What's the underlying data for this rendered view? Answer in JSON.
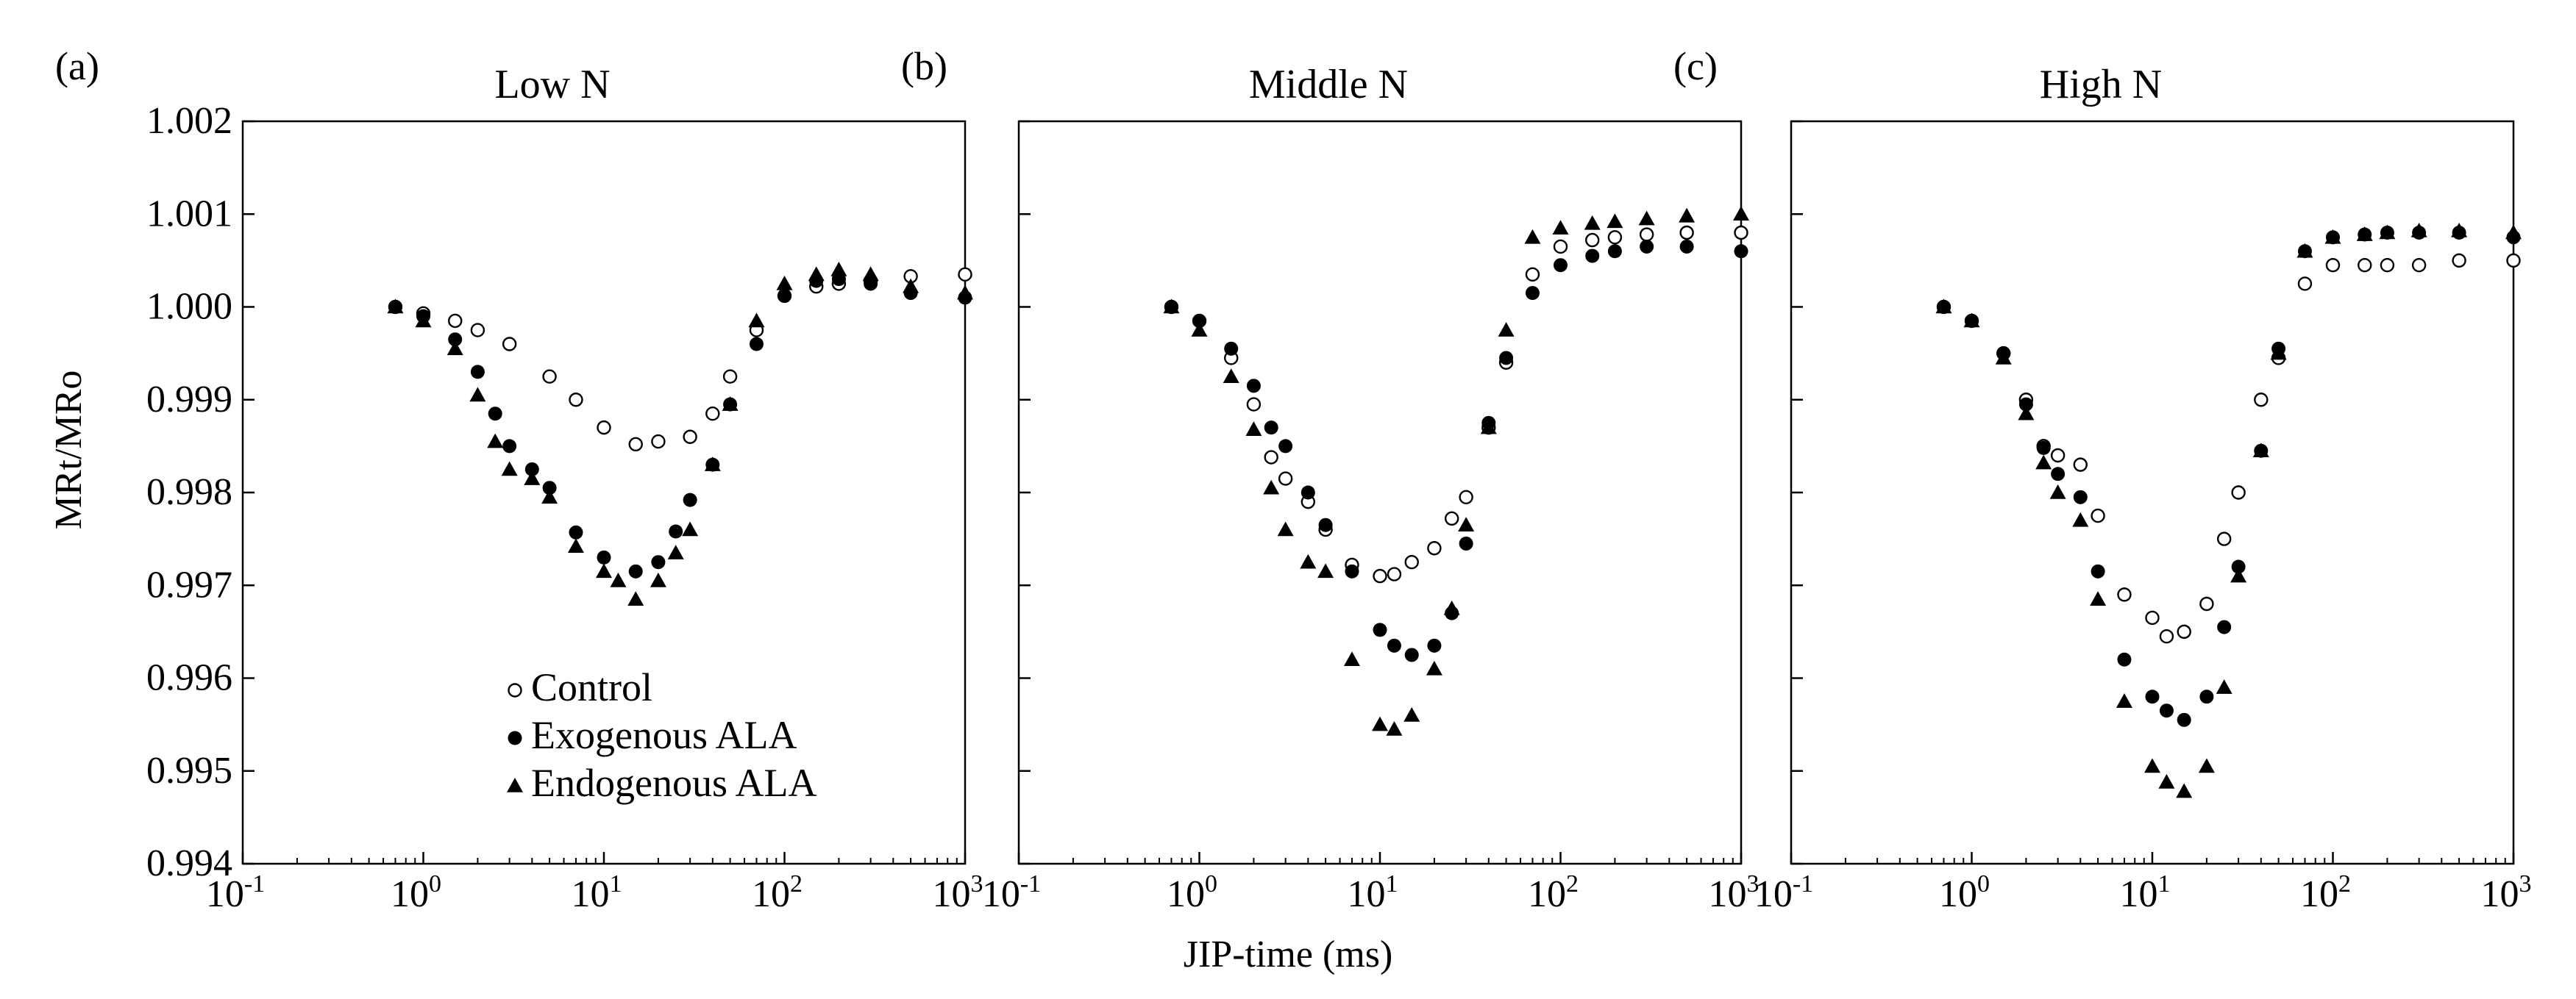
{
  "chart_data": {
    "type": "scatter",
    "x_scale": "log",
    "xlabel": "JIP-time (ms)",
    "ylabel": "MRt/MRo",
    "xlim": [
      0.1,
      1000
    ],
    "ylim": [
      0.994,
      1.002
    ],
    "x_tick_labels": [
      {
        "base": "10",
        "exp": "-1"
      },
      {
        "base": "10",
        "exp": "0"
      },
      {
        "base": "10",
        "exp": "1"
      },
      {
        "base": "10",
        "exp": "2"
      },
      {
        "base": "10",
        "exp": "3"
      }
    ],
    "y_ticks": [
      0.994,
      0.995,
      0.996,
      0.997,
      0.998,
      0.999,
      1.0,
      1.001,
      1.002
    ],
    "y_tick_labels": [
      "0.994",
      "0.995",
      "0.996",
      "0.997",
      "0.998",
      "0.999",
      "1.000",
      "1.001",
      "1.002"
    ],
    "legend": {
      "placement": "bottom-center of panel (a)",
      "entries": [
        {
          "label": "Control",
          "marker": "open-circle"
        },
        {
          "label": "Exogenous ALA",
          "marker": "filled-circle"
        },
        {
          "label": "Endogenous ALA",
          "marker": "filled-triangle"
        }
      ]
    },
    "panels": [
      {
        "tag": "(a)",
        "title": "Low N",
        "series": [
          {
            "name": "Control",
            "points": [
              [
                0.7,
                1.0
              ],
              [
                1.0,
                0.99993
              ],
              [
                1.5,
                0.99985
              ],
              [
                2.0,
                0.99975
              ],
              [
                3.0,
                0.9996
              ],
              [
                5.0,
                0.99925
              ],
              [
                7.0,
                0.999
              ],
              [
                10.0,
                0.9987
              ],
              [
                15.0,
                0.99852
              ],
              [
                20.0,
                0.99855
              ],
              [
                30.0,
                0.9986
              ],
              [
                40.0,
                0.99885
              ],
              [
                50.0,
                0.99925
              ],
              [
                70.0,
                0.99975
              ],
              [
                100.0,
                1.00012
              ],
              [
                150.0,
                1.00022
              ],
              [
                200.0,
                1.00025
              ],
              [
                300.0,
                1.00028
              ],
              [
                500.0,
                1.00033
              ],
              [
                1000.0,
                1.00035
              ]
            ]
          },
          {
            "name": "Exogenous ALA",
            "points": [
              [
                0.7,
                1.0
              ],
              [
                1.0,
                0.9999
              ],
              [
                1.5,
                0.99965
              ],
              [
                2.0,
                0.9993
              ],
              [
                2.5,
                0.99885
              ],
              [
                3.0,
                0.9985
              ],
              [
                4.0,
                0.99825
              ],
              [
                5.0,
                0.99805
              ],
              [
                7.0,
                0.99757
              ],
              [
                10.0,
                0.9973
              ],
              [
                15.0,
                0.99715
              ],
              [
                20.0,
                0.99725
              ],
              [
                25.0,
                0.99758
              ],
              [
                30.0,
                0.99792
              ],
              [
                40.0,
                0.9983
              ],
              [
                50.0,
                0.99895
              ],
              [
                70.0,
                0.9996
              ],
              [
                100.0,
                1.00012
              ],
              [
                150.0,
                1.00028
              ],
              [
                200.0,
                1.0003
              ],
              [
                300.0,
                1.00025
              ],
              [
                500.0,
                1.00015
              ],
              [
                1000.0,
                1.0001
              ]
            ]
          },
          {
            "name": "Endogenous ALA",
            "points": [
              [
                0.7,
                1.0
              ],
              [
                1.0,
                0.99985
              ],
              [
                1.5,
                0.99955
              ],
              [
                2.0,
                0.99905
              ],
              [
                2.5,
                0.99855
              ],
              [
                3.0,
                0.99825
              ],
              [
                4.0,
                0.99815
              ],
              [
                5.0,
                0.99795
              ],
              [
                7.0,
                0.99742
              ],
              [
                10.0,
                0.99715
              ],
              [
                12.0,
                0.99705
              ],
              [
                15.0,
                0.99685
              ],
              [
                20.0,
                0.99705
              ],
              [
                25.0,
                0.99735
              ],
              [
                30.0,
                0.9976
              ],
              [
                40.0,
                0.9983
              ],
              [
                50.0,
                0.99895
              ],
              [
                70.0,
                0.99985
              ],
              [
                100.0,
                1.00025
              ],
              [
                150.0,
                1.00035
              ],
              [
                200.0,
                1.0004
              ],
              [
                300.0,
                1.00035
              ],
              [
                500.0,
                1.00022
              ],
              [
                1000.0,
                1.00015
              ]
            ]
          }
        ]
      },
      {
        "tag": "(b)",
        "title": "Middle N",
        "series": [
          {
            "name": "Control",
            "points": [
              [
                0.7,
                1.0
              ],
              [
                1.0,
                0.99985
              ],
              [
                1.5,
                0.99945
              ],
              [
                2.0,
                0.99895
              ],
              [
                2.5,
                0.99838
              ],
              [
                3.0,
                0.99815
              ],
              [
                4.0,
                0.9979
              ],
              [
                5.0,
                0.9976
              ],
              [
                7.0,
                0.99722
              ],
              [
                10.0,
                0.9971
              ],
              [
                12.0,
                0.99712
              ],
              [
                15.0,
                0.99725
              ],
              [
                20.0,
                0.9974
              ],
              [
                25.0,
                0.99772
              ],
              [
                30.0,
                0.99795
              ],
              [
                40.0,
                0.9987
              ],
              [
                50.0,
                0.9994
              ],
              [
                70.0,
                1.00035
              ],
              [
                100.0,
                1.00065
              ],
              [
                150.0,
                1.00072
              ],
              [
                200.0,
                1.00075
              ],
              [
                300.0,
                1.00078
              ],
              [
                500.0,
                1.0008
              ],
              [
                1000.0,
                1.0008
              ]
            ]
          },
          {
            "name": "Exogenous ALA",
            "points": [
              [
                0.7,
                1.0
              ],
              [
                1.0,
                0.99985
              ],
              [
                1.5,
                0.99955
              ],
              [
                2.0,
                0.99915
              ],
              [
                2.5,
                0.9987
              ],
              [
                3.0,
                0.9985
              ],
              [
                4.0,
                0.998
              ],
              [
                5.0,
                0.99765
              ],
              [
                7.0,
                0.99715
              ],
              [
                10.0,
                0.99652
              ],
              [
                12.0,
                0.99635
              ],
              [
                15.0,
                0.99625
              ],
              [
                20.0,
                0.99635
              ],
              [
                25.0,
                0.9967
              ],
              [
                30.0,
                0.99745
              ],
              [
                40.0,
                0.99875
              ],
              [
                50.0,
                0.99945
              ],
              [
                70.0,
                1.00015
              ],
              [
                100.0,
                1.00045
              ],
              [
                150.0,
                1.00055
              ],
              [
                200.0,
                1.0006
              ],
              [
                300.0,
                1.00065
              ],
              [
                500.0,
                1.00065
              ],
              [
                1000.0,
                1.0006
              ]
            ]
          },
          {
            "name": "Endogenous ALA",
            "points": [
              [
                0.7,
                1.0
              ],
              [
                1.0,
                0.99975
              ],
              [
                1.5,
                0.99925
              ],
              [
                2.0,
                0.99868
              ],
              [
                2.5,
                0.99805
              ],
              [
                3.0,
                0.9976
              ],
              [
                4.0,
                0.99725
              ],
              [
                5.0,
                0.99715
              ],
              [
                7.0,
                0.9962
              ],
              [
                10.0,
                0.9955
              ],
              [
                12.0,
                0.99545
              ],
              [
                15.0,
                0.9956
              ],
              [
                20.0,
                0.9961
              ],
              [
                25.0,
                0.99675
              ],
              [
                30.0,
                0.99765
              ],
              [
                40.0,
                0.9987
              ],
              [
                50.0,
                0.99975
              ],
              [
                70.0,
                1.00075
              ],
              [
                100.0,
                1.00085
              ],
              [
                150.0,
                1.0009
              ],
              [
                200.0,
                1.00092
              ],
              [
                300.0,
                1.00095
              ],
              [
                500.0,
                1.00098
              ],
              [
                1000.0,
                1.001
              ]
            ]
          }
        ]
      },
      {
        "tag": "(c)",
        "title": "High N",
        "series": [
          {
            "name": "Control",
            "points": [
              [
                0.7,
                1.0
              ],
              [
                1.0,
                0.99985
              ],
              [
                1.5,
                0.9995
              ],
              [
                2.0,
                0.999
              ],
              [
                2.5,
                0.9985
              ],
              [
                3.0,
                0.9984
              ],
              [
                4.0,
                0.9983
              ],
              [
                5.0,
                0.99775
              ],
              [
                7.0,
                0.9969
              ],
              [
                10.0,
                0.99665
              ],
              [
                12.0,
                0.99645
              ],
              [
                15.0,
                0.9965
              ],
              [
                20.0,
                0.9968
              ],
              [
                25.0,
                0.9975
              ],
              [
                30.0,
                0.998
              ],
              [
                40.0,
                0.999
              ],
              [
                50.0,
                0.99945
              ],
              [
                70.0,
                1.00025
              ],
              [
                100.0,
                1.00045
              ],
              [
                150.0,
                1.00045
              ],
              [
                200.0,
                1.00045
              ],
              [
                300.0,
                1.00045
              ],
              [
                500.0,
                1.0005
              ],
              [
                1000.0,
                1.0005
              ]
            ]
          },
          {
            "name": "Exogenous ALA",
            "points": [
              [
                0.7,
                1.0
              ],
              [
                1.0,
                0.99985
              ],
              [
                1.5,
                0.9995
              ],
              [
                2.0,
                0.99895
              ],
              [
                2.5,
                0.99848
              ],
              [
                3.0,
                0.9982
              ],
              [
                4.0,
                0.99795
              ],
              [
                5.0,
                0.99715
              ],
              [
                7.0,
                0.9962
              ],
              [
                10.0,
                0.9958
              ],
              [
                12.0,
                0.99565
              ],
              [
                15.0,
                0.99555
              ],
              [
                20.0,
                0.9958
              ],
              [
                25.0,
                0.99655
              ],
              [
                30.0,
                0.9972
              ],
              [
                40.0,
                0.99845
              ],
              [
                50.0,
                0.99955
              ],
              [
                70.0,
                1.0006
              ],
              [
                100.0,
                1.00075
              ],
              [
                150.0,
                1.00078
              ],
              [
                200.0,
                1.0008
              ],
              [
                300.0,
                1.0008
              ],
              [
                500.0,
                1.0008
              ],
              [
                1000.0,
                1.00075
              ]
            ]
          },
          {
            "name": "Endogenous ALA",
            "points": [
              [
                0.7,
                1.0
              ],
              [
                1.0,
                0.99985
              ],
              [
                1.5,
                0.99945
              ],
              [
                2.0,
                0.99885
              ],
              [
                2.5,
                0.99832
              ],
              [
                3.0,
                0.998
              ],
              [
                4.0,
                0.9977
              ],
              [
                5.0,
                0.99685
              ],
              [
                7.0,
                0.99575
              ],
              [
                10.0,
                0.99505
              ],
              [
                12.0,
                0.99488
              ],
              [
                15.0,
                0.99478
              ],
              [
                20.0,
                0.99505
              ],
              [
                25.0,
                0.9959
              ],
              [
                30.0,
                0.9971
              ],
              [
                40.0,
                0.99845
              ],
              [
                50.0,
                0.9995
              ],
              [
                70.0,
                1.0006
              ],
              [
                100.0,
                1.00075
              ],
              [
                150.0,
                1.00078
              ],
              [
                200.0,
                1.0008
              ],
              [
                300.0,
                1.00082
              ],
              [
                500.0,
                1.00082
              ],
              [
                1000.0,
                1.0008
              ]
            ]
          }
        ]
      }
    ]
  }
}
